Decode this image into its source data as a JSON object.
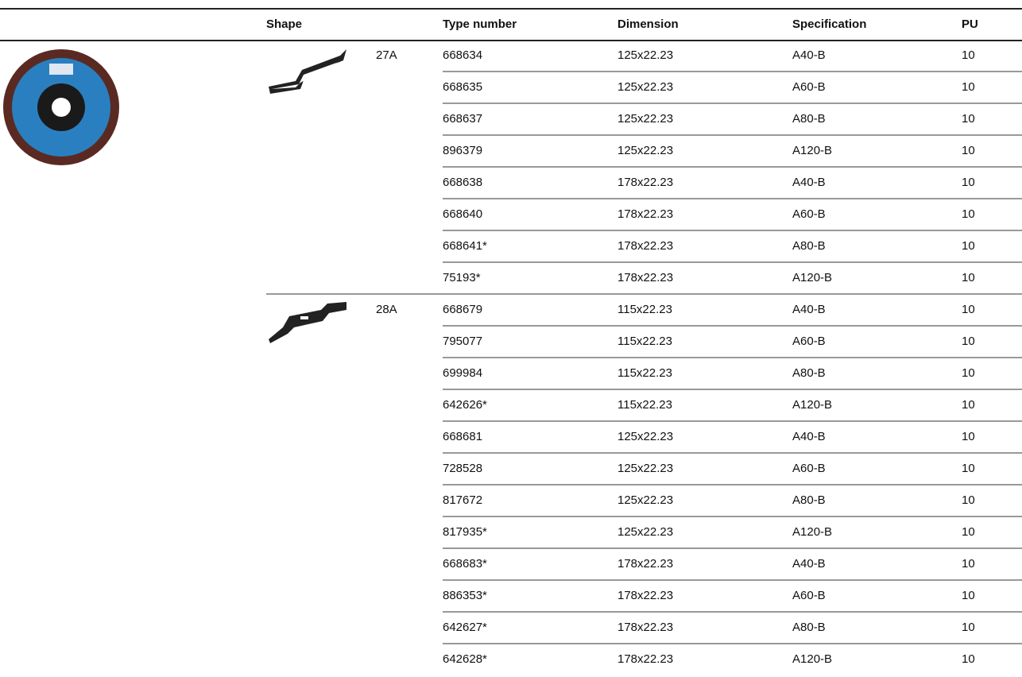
{
  "header": {
    "shape": "Shape",
    "type_number": "Type number",
    "dimension": "Dimension",
    "specification": "Specification",
    "pu": "PU"
  },
  "groups": [
    {
      "shape": "27A",
      "rows": [
        [
          "668634",
          "125x22.23",
          "A40-B",
          "10"
        ],
        [
          "668635",
          "125x22.23",
          "A60-B",
          "10"
        ],
        [
          "668637",
          "125x22.23",
          "A80-B",
          "10"
        ],
        [
          "896379",
          "125x22.23",
          "A120-B",
          "10"
        ],
        [
          "668638",
          "178x22.23",
          "A40-B",
          "10"
        ],
        [
          "668640",
          "178x22.23",
          "A60-B",
          "10"
        ],
        [
          "668641*",
          "178x22.23",
          "A80-B",
          "10"
        ],
        [
          "75193*",
          "178x22.23",
          "A120-B",
          "10"
        ]
      ]
    },
    {
      "shape": "28A",
      "rows": [
        [
          "668679",
          "115x22.23",
          "A40-B",
          "10"
        ],
        [
          "795077",
          "115x22.23",
          "A60-B",
          "10"
        ],
        [
          "699984",
          "115x22.23",
          "A80-B",
          "10"
        ],
        [
          "642626*",
          "115x22.23",
          "A120-B",
          "10"
        ],
        [
          "668681",
          "125x22.23",
          "A40-B",
          "10"
        ],
        [
          "728528",
          "125x22.23",
          "A60-B",
          "10"
        ],
        [
          "817672",
          "125x22.23",
          "A80-B",
          "10"
        ],
        [
          "817935*",
          "125x22.23",
          "A120-B",
          "10"
        ],
        [
          "668683*",
          "178x22.23",
          "A40-B",
          "10"
        ],
        [
          "886353*",
          "178x22.23",
          "A60-B",
          "10"
        ],
        [
          "642627*",
          "178x22.23",
          "A80-B",
          "10"
        ],
        [
          "642628*",
          "178x22.23",
          "A120-B",
          "10"
        ]
      ]
    }
  ]
}
